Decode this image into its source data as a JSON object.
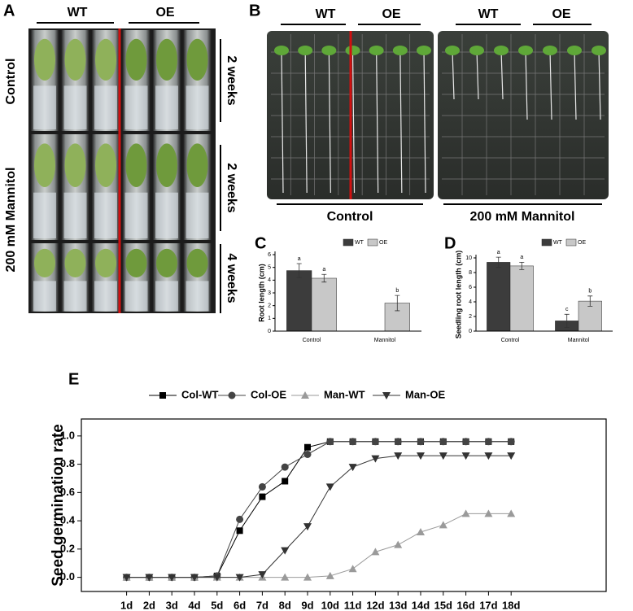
{
  "figure": {
    "panel_a": {
      "label": "A",
      "groups": [
        "WT",
        "OE"
      ],
      "rows": [
        "Control",
        "200 mM Mannitol"
      ],
      "durations": [
        "2 weeks",
        "2 weeks",
        "4 weeks"
      ]
    },
    "panel_b": {
      "label": "B",
      "plates": [
        {
          "groups": [
            "WT",
            "OE"
          ],
          "condition": "Control"
        },
        {
          "groups": [
            "WT",
            "OE"
          ],
          "condition": "200 mM Mannitol"
        }
      ]
    }
  },
  "chart_data": [
    {
      "type": "bar",
      "panel_label": "C",
      "y_label": "Root length (cm)",
      "categories": [
        "Control",
        "Mannitol"
      ],
      "series": [
        {
          "name": "WT",
          "color": "#3c3c3c",
          "values": [
            4.75,
            0
          ],
          "errors": [
            0.55,
            0
          ],
          "letters": [
            "a",
            null
          ]
        },
        {
          "name": "OE",
          "color": "#c8c8c8",
          "values": [
            4.15,
            2.2
          ],
          "errors": [
            0.3,
            0.6
          ],
          "letters": [
            "a",
            "b"
          ]
        }
      ],
      "ylim": [
        0,
        6
      ],
      "yticks": [
        0,
        1,
        2,
        3,
        4,
        5,
        6
      ]
    },
    {
      "type": "bar",
      "panel_label": "D",
      "y_label": "Seedling root length (cm)",
      "categories": [
        "Control",
        "Mannitol"
      ],
      "series": [
        {
          "name": "WT",
          "color": "#3c3c3c",
          "values": [
            9.4,
            1.4
          ],
          "errors": [
            0.7,
            0.9
          ],
          "letters": [
            "a",
            "c"
          ]
        },
        {
          "name": "OE",
          "color": "#c8c8c8",
          "values": [
            8.9,
            4.1
          ],
          "errors": [
            0.5,
            0.7
          ],
          "letters": [
            "a",
            "b"
          ]
        }
      ],
      "ylim": [
        0,
        10
      ],
      "yticks": [
        0,
        2,
        4,
        6,
        8,
        10
      ]
    },
    {
      "type": "line",
      "panel_label": "E",
      "y_label": "Seed germination rate",
      "categories": [
        "1d",
        "2d",
        "3d",
        "4d",
        "5d",
        "6d",
        "7d",
        "8d",
        "9d",
        "10d",
        "11d",
        "12d",
        "13d",
        "14d",
        "15d",
        "16d",
        "17d",
        "18d"
      ],
      "series": [
        {
          "name": "Col-WT",
          "color": "#000000",
          "marker": "square",
          "values": [
            0,
            0,
            0,
            0,
            0.01,
            0.33,
            0.57,
            0.68,
            0.92,
            0.96,
            0.96,
            0.96,
            0.96,
            0.96,
            0.96,
            0.96,
            0.96,
            0.96
          ]
        },
        {
          "name": "Col-OE",
          "color": "#444444",
          "marker": "circle",
          "values": [
            0,
            0,
            0,
            0,
            0.01,
            0.41,
            0.64,
            0.78,
            0.87,
            0.96,
            0.96,
            0.96,
            0.96,
            0.96,
            0.96,
            0.96,
            0.96,
            0.96
          ]
        },
        {
          "name": "Man-WT",
          "color": "#9a9a9a",
          "marker": "triangle-up",
          "values": [
            0,
            0,
            0,
            0,
            0,
            0,
            0,
            0,
            0,
            0.01,
            0.06,
            0.18,
            0.23,
            0.32,
            0.37,
            0.45,
            0.45,
            0.45
          ]
        },
        {
          "name": "Man-OE",
          "color": "#333333",
          "marker": "triangle-down",
          "values": [
            0,
            0,
            0,
            0,
            0,
            0,
            0.02,
            0.19,
            0.36,
            0.64,
            0.78,
            0.84,
            0.86,
            0.86,
            0.86,
            0.86,
            0.86,
            0.86
          ]
        }
      ],
      "ylim": [
        -0.1,
        1.12
      ],
      "yticks": [
        {
          "value": 0,
          "label": "0.0"
        },
        0.2,
        0.4,
        0.6,
        0.8,
        {
          "value": 1,
          "label": "1.0"
        }
      ]
    }
  ]
}
